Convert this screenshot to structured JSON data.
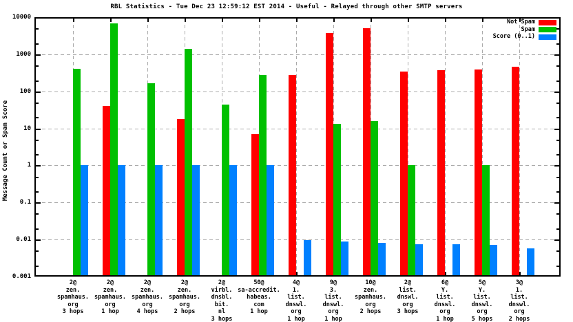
{
  "chart_data": {
    "type": "bar",
    "title": "RBL Statistics - Tue Dec 23 12:59:12 EST 2014 - Useful - Relayed through other SMTP servers",
    "ylabel": "Message Count or Spam Score",
    "xlabel": "",
    "y_axis": {
      "scale": "log",
      "min": 0.001,
      "max": 10000,
      "ticks": [
        {
          "label": "10000",
          "value": 10000
        },
        {
          "label": "1000",
          "value": 1000
        },
        {
          "label": "100",
          "value": 100
        },
        {
          "label": "10",
          "value": 10
        },
        {
          "label": "1",
          "value": 1
        },
        {
          "label": "0.1",
          "value": 0.1
        },
        {
          "label": "0.01",
          "value": 0.01
        },
        {
          "label": "0.001",
          "value": 0.001
        }
      ]
    },
    "grid": true,
    "legend_position": "top-right-inside",
    "categories": [
      [
        "2@",
        "zen.",
        "spamhaus.",
        "org",
        "3 hops"
      ],
      [
        "2@",
        "zen.",
        "spamhaus.",
        "org",
        "1 hop"
      ],
      [
        "2@",
        "zen.",
        "spamhaus.",
        "org",
        "4 hops"
      ],
      [
        "2@",
        "zen.",
        "spamhaus.",
        "org",
        "2 hops"
      ],
      [
        "2@",
        "virbl.",
        "dnsbl.",
        "bit.",
        "nl",
        "3 hops"
      ],
      [
        "50@",
        "sa-accredit.",
        "habeas.",
        "com",
        "1 hop"
      ],
      [
        "4@",
        "1.",
        "list.",
        "dnswl.",
        "org",
        "1 hop"
      ],
      [
        "9@",
        "3.",
        "list.",
        "dnswl.",
        "org",
        "1 hop"
      ],
      [
        "10@",
        "zen.",
        "spamhaus.",
        "org",
        "2 hops"
      ],
      [
        "2@",
        "list.",
        "dnswl.",
        "org",
        "3 hops"
      ],
      [
        "6@",
        "Y.",
        "list.",
        "dnswl.",
        "org",
        "1 hop"
      ],
      [
        "5@",
        "Y.",
        "list.",
        "dnswl.",
        "org",
        "5 hops"
      ],
      [
        "3@",
        "1.",
        "list.",
        "dnswl.",
        "org",
        "2 hops"
      ]
    ],
    "series": [
      {
        "id": "not-spam",
        "name": "Not Spam",
        "color": "#ff0000",
        "values": [
          null,
          40,
          null,
          18,
          null,
          7,
          280,
          3700,
          5000,
          340,
          365,
          380,
          470
        ]
      },
      {
        "id": "spam",
        "name": "Spam",
        "color": "#00c000",
        "values": [
          410,
          6800,
          165,
          1400,
          43,
          275,
          null,
          13,
          16,
          1,
          null,
          1,
          null
        ]
      },
      {
        "id": "score",
        "name": "Score (0..1)",
        "color": "#0080ff",
        "values": [
          1,
          1,
          1,
          1,
          1,
          1,
          0.0095,
          0.0089,
          0.0083,
          0.0075,
          0.0075,
          0.007,
          0.0058
        ]
      }
    ],
    "colors": {
      "background": "#ffffff",
      "frame": "#000000",
      "gridline": "#aaaaaa"
    }
  }
}
